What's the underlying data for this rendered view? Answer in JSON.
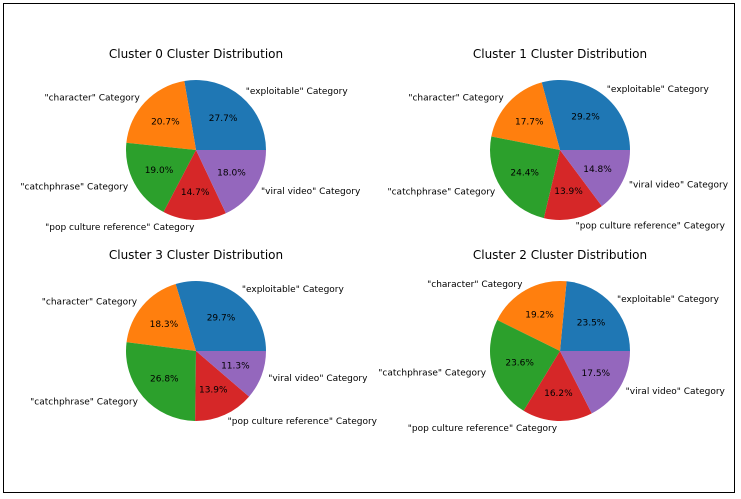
{
  "colors": {
    "exploitable": "#1f77b4",
    "character": "#ff7f0e",
    "catchphrase": "#2ca02c",
    "pop_culture_reference": "#d62728",
    "viral_video": "#9467bd"
  },
  "chart_data": [
    {
      "type": "pie",
      "title": "Cluster 0 Cluster Distribution",
      "labels": [
        "\"exploitable\" Category",
        "\"character\" Category",
        "\"catchphrase\" Category",
        "\"pop culture reference\" Category",
        "\"viral video\" Category"
      ],
      "values": [
        27.7,
        20.7,
        19.0,
        14.7,
        18.0
      ],
      "value_labels": [
        "27.7%",
        "20.7%",
        "19.0%",
        "14.7%",
        "18.0%"
      ]
    },
    {
      "type": "pie",
      "title": "Cluster 1 Cluster Distribution",
      "labels": [
        "\"exploitable\" Category",
        "\"character\" Category",
        "\"catchphrase\" Category",
        "\"pop culture reference\" Category",
        "\"viral video\" Category"
      ],
      "values": [
        29.2,
        17.7,
        24.4,
        13.9,
        14.8
      ],
      "value_labels": [
        "29.2%",
        "17.7%",
        "24.4%",
        "13.9%",
        "14.8%"
      ]
    },
    {
      "type": "pie",
      "title": "Cluster 3 Cluster Distribution",
      "labels": [
        "\"exploitable\" Category",
        "\"character\" Category",
        "\"catchphrase\" Category",
        "\"pop culture reference\" Category",
        "\"viral video\" Category"
      ],
      "values": [
        29.7,
        18.3,
        26.8,
        13.9,
        11.3
      ],
      "value_labels": [
        "29.7%",
        "18.3%",
        "26.8%",
        "13.9%",
        "11.3%"
      ]
    },
    {
      "type": "pie",
      "title": "Cluster 2 Cluster Distribution",
      "labels": [
        "\"exploitable\" Category",
        "\"character\" Category",
        "\"catchphrase\" Category",
        "\"pop culture reference\" Category",
        "\"viral video\" Category"
      ],
      "values": [
        23.5,
        19.2,
        23.6,
        16.2,
        17.5
      ],
      "value_labels": [
        "23.5%",
        "19.2%",
        "23.6%",
        "16.2%",
        "17.5%"
      ]
    }
  ]
}
